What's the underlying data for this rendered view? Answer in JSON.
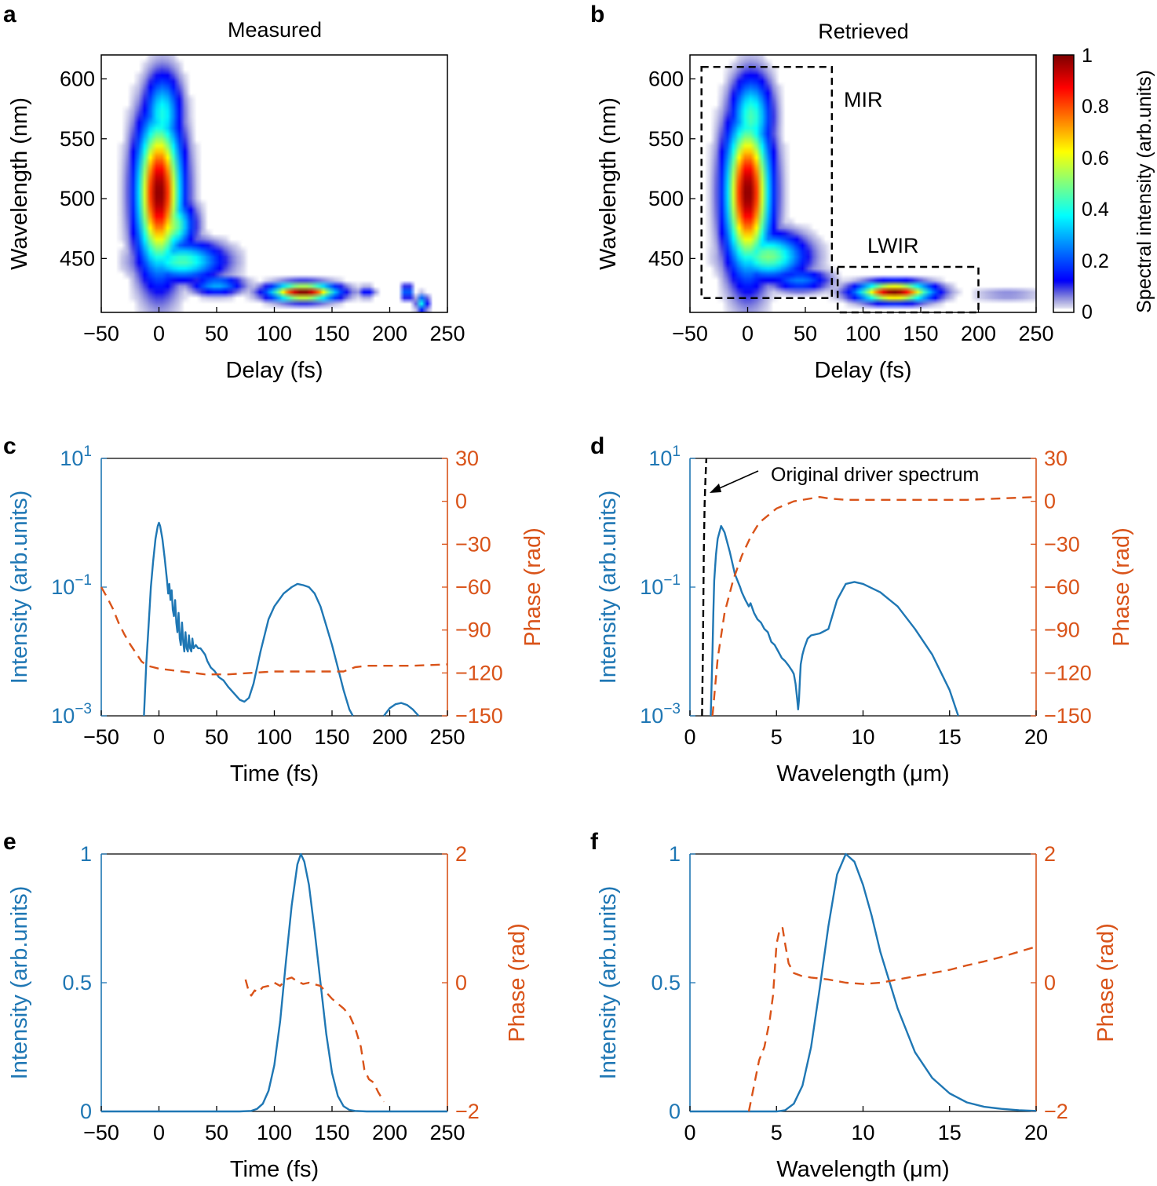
{
  "colors": {
    "blue": "#1f77b4",
    "orange": "#d95319",
    "axis": "#000000"
  },
  "chart_data": [
    {
      "panel": "a",
      "type": "heatmap",
      "title": "Measured",
      "xlabel": "Delay (fs)",
      "ylabel": "Wavelength (nm)",
      "xlim": [
        -50,
        250
      ],
      "ylim": [
        405,
        620
      ],
      "xticks": [
        "−50",
        "0",
        "50",
        "100",
        "150",
        "200",
        "250"
      ],
      "yticks": [
        "450",
        "500",
        "550",
        "600"
      ],
      "blobs": [
        {
          "x": 0,
          "y": 505,
          "sx": 12,
          "sy": 40,
          "amp": 1.0
        },
        {
          "x": 3,
          "y": 570,
          "sx": 10,
          "sy": 22,
          "amp": 0.4
        },
        {
          "x": 20,
          "y": 448,
          "sx": 22,
          "sy": 10,
          "amp": 0.45
        },
        {
          "x": 10,
          "y": 478,
          "sx": 12,
          "sy": 14,
          "amp": 0.55
        },
        {
          "x": 50,
          "y": 428,
          "sx": 14,
          "sy": 5,
          "amp": 0.3
        },
        {
          "x": 125,
          "y": 422,
          "sx": 18,
          "sy": 4.5,
          "amp": 1.0
        },
        {
          "x": 180,
          "y": 422,
          "sx": 5,
          "sy": 3,
          "amp": 0.15
        },
        {
          "x": 215,
          "y": 422,
          "sx": 3,
          "sy": 4,
          "amp": 0.3
        },
        {
          "x": 228,
          "y": 413,
          "sx": 3,
          "sy": 4,
          "amp": 0.4
        }
      ]
    },
    {
      "panel": "b",
      "type": "heatmap",
      "title": "Retrieved",
      "xlabel": "Delay (fs)",
      "ylabel": "Wavelength (nm)",
      "xlim": [
        -50,
        250
      ],
      "ylim": [
        405,
        620
      ],
      "xticks": [
        "−50",
        "0",
        "50",
        "100",
        "150",
        "200",
        "250"
      ],
      "yticks": [
        "450",
        "500",
        "550",
        "600"
      ],
      "annotations": [
        "MIR",
        "LWIR"
      ],
      "boxes": [
        {
          "label": "MIR",
          "x0": -40,
          "x1": 73,
          "y0": 417,
          "y1": 610
        },
        {
          "label": "LWIR",
          "x0": 78,
          "x1": 200,
          "y0": 405,
          "y1": 443
        }
      ],
      "colorbar": {
        "label": "Spectral intensity (arb.units)",
        "ticks": [
          "0",
          "0.2",
          "0.4",
          "0.6",
          "0.8",
          "1"
        ]
      },
      "blobs": [
        {
          "x": 0,
          "y": 505,
          "sx": 12,
          "sy": 40,
          "amp": 1.0
        },
        {
          "x": 3,
          "y": 568,
          "sx": 11,
          "sy": 22,
          "amp": 0.45
        },
        {
          "x": 18,
          "y": 452,
          "sx": 20,
          "sy": 12,
          "amp": 0.5
        },
        {
          "x": 45,
          "y": 432,
          "sx": 16,
          "sy": 6,
          "amp": 0.25
        },
        {
          "x": 127,
          "y": 422,
          "sx": 20,
          "sy": 5,
          "amp": 1.0
        },
        {
          "x": 225,
          "y": 420,
          "sx": 20,
          "sy": 4,
          "amp": 0.06
        }
      ]
    },
    {
      "panel": "c",
      "type": "line",
      "xlabel": "Time (fs)",
      "ylabel_left": "Intensity (arb.units)",
      "ylabel_right": "Phase (rad)",
      "xlim": [
        -50,
        250
      ],
      "ylim_left_log": [
        -3,
        1
      ],
      "ylim_right": [
        -150,
        30
      ],
      "xticks": [
        "−50",
        "0",
        "50",
        "100",
        "150",
        "200",
        "250"
      ],
      "yticks_left": [
        {
          "b": "10",
          "e": "1"
        },
        {
          "b": "10",
          "e": "−1"
        },
        {
          "b": "10",
          "e": "−3"
        }
      ],
      "yticks_right": [
        "30",
        "0",
        "−30",
        "−60",
        "−90",
        "−120",
        "−150"
      ],
      "series": [
        {
          "name": "Intensity",
          "axis": "left-log10",
          "style": "solid",
          "x": [
            -13,
            -11,
            -9,
            -7,
            -5,
            -3,
            -1,
            0,
            1,
            3,
            5,
            7,
            8,
            9,
            10,
            11,
            12,
            13,
            14,
            15,
            16,
            17,
            18,
            19,
            20,
            21,
            22,
            23,
            24,
            25,
            26,
            27,
            28,
            29,
            30,
            32,
            34,
            36,
            38,
            40,
            42,
            45,
            48,
            52,
            56,
            60,
            65,
            70,
            74,
            78,
            82,
            88,
            95,
            100,
            108,
            115,
            120,
            125,
            130,
            135,
            140,
            145,
            150,
            155,
            160,
            165,
            168
          ],
          "y": [
            -3,
            -2.2,
            -1.6,
            -1.0,
            -0.6,
            -0.25,
            -0.05,
            0.0,
            -0.05,
            -0.25,
            -0.55,
            -0.9,
            -1.1,
            -0.95,
            -1.2,
            -1.05,
            -1.35,
            -1.45,
            -1.2,
            -1.55,
            -1.7,
            -1.4,
            -1.8,
            -1.9,
            -1.55,
            -1.85,
            -2.0,
            -1.7,
            -1.95,
            -2.0,
            -1.75,
            -1.95,
            -2.0,
            -1.8,
            -1.95,
            -1.9,
            -1.95,
            -1.95,
            -2.0,
            -2.05,
            -2.15,
            -2.25,
            -2.3,
            -2.4,
            -2.45,
            -2.55,
            -2.65,
            -2.75,
            -2.78,
            -2.72,
            -2.5,
            -2.0,
            -1.5,
            -1.3,
            -1.1,
            -1.0,
            -0.95,
            -0.97,
            -1.0,
            -1.1,
            -1.3,
            -1.6,
            -1.9,
            -2.25,
            -2.6,
            -2.9,
            -3.0
          ]
        },
        {
          "name": "Intensity (satellite)",
          "axis": "left-log10",
          "style": "solid",
          "x": [
            195,
            200,
            205,
            210,
            215,
            220,
            225
          ],
          "y": [
            -3.0,
            -2.88,
            -2.82,
            -2.8,
            -2.83,
            -2.9,
            -3.0
          ]
        },
        {
          "name": "Phase",
          "axis": "right",
          "style": "dashed",
          "x": [
            -50,
            -45,
            -40,
            -35,
            -30,
            -25,
            -20,
            -15,
            -10,
            -5,
            0,
            10,
            20,
            30,
            40,
            50,
            60,
            80,
            100,
            120,
            140,
            160,
            170,
            180,
            200,
            220,
            250
          ],
          "y": [
            -60,
            -67,
            -75,
            -85,
            -93,
            -100,
            -106,
            -112,
            -115,
            -116,
            -117,
            -118,
            -119,
            -120,
            -121,
            -121,
            -121,
            -120,
            -119,
            -119,
            -119,
            -119,
            -116,
            -115,
            -115,
            -115,
            -114
          ]
        }
      ]
    },
    {
      "panel": "d",
      "type": "line",
      "xlabel": "Wavelength (μm)",
      "ylabel_left": "Intensity (arb.units)",
      "ylabel_right": "Phase (rad)",
      "xlim": [
        0,
        20
      ],
      "ylim_left_log": [
        -3,
        1
      ],
      "ylim_right": [
        -150,
        30
      ],
      "xticks": [
        "0",
        "5",
        "10",
        "15",
        "20"
      ],
      "yticks_left": [
        {
          "b": "10",
          "e": "1"
        },
        {
          "b": "10",
          "e": "−1"
        },
        {
          "b": "10",
          "e": "−3"
        }
      ],
      "yticks_right": [
        "30",
        "0",
        "−30",
        "−60",
        "−90",
        "−120",
        "−150"
      ],
      "annotations": [
        "Original driver spectrum"
      ],
      "series": [
        {
          "name": "Intensity",
          "axis": "left-log10",
          "style": "solid",
          "x": [
            1.2,
            1.25,
            1.3,
            1.35,
            1.4,
            1.5,
            1.6,
            1.8,
            2.0,
            2.3,
            2.6,
            2.9,
            3.0,
            3.2,
            3.4,
            3.5,
            3.7,
            3.9,
            4.1,
            4.3,
            4.5,
            4.7,
            4.9,
            5.1,
            5.3,
            5.5,
            5.7,
            5.9,
            6.0,
            6.1,
            6.2,
            6.25,
            6.3,
            6.35,
            6.4,
            6.5,
            6.6,
            6.8,
            7.0,
            7.5,
            8.0,
            8.5,
            9.0,
            9.5,
            10.0,
            11.0,
            12.0,
            13.0,
            14.0,
            15.0,
            15.5
          ],
          "y": [
            -3.0,
            -2.5,
            -2.0,
            -1.4,
            -0.9,
            -0.5,
            -0.25,
            -0.05,
            -0.15,
            -0.45,
            -0.8,
            -1.0,
            -1.08,
            -1.2,
            -1.3,
            -1.25,
            -1.4,
            -1.5,
            -1.55,
            -1.65,
            -1.7,
            -1.85,
            -1.9,
            -2.0,
            -2.1,
            -2.15,
            -2.22,
            -2.3,
            -2.35,
            -2.5,
            -2.75,
            -2.9,
            -2.75,
            -2.45,
            -2.2,
            -2.05,
            -1.95,
            -1.8,
            -1.75,
            -1.72,
            -1.65,
            -1.2,
            -0.95,
            -0.92,
            -0.95,
            -1.08,
            -1.3,
            -1.65,
            -2.05,
            -2.6,
            -3.0
          ]
        },
        {
          "name": "Original driver spectrum",
          "axis": "left-log10",
          "style": "dashed-black",
          "x": [
            0.7,
            0.75,
            0.8,
            0.85,
            0.9,
            0.95
          ],
          "y": [
            -3.0,
            -2.0,
            -0.5,
            0.3,
            0.7,
            1.0
          ]
        },
        {
          "name": "Phase",
          "axis": "right",
          "style": "dashed",
          "x": [
            1.3,
            1.6,
            2.0,
            2.5,
            3.0,
            3.5,
            4.0,
            5.0,
            6.0,
            7.0,
            7.5,
            8.0,
            9.0,
            10.0,
            12.0,
            14.0,
            16.0,
            18.0,
            20.0
          ],
          "y": [
            -150,
            -110,
            -78,
            -55,
            -38,
            -25,
            -15,
            -5,
            0,
            2,
            3,
            2,
            1,
            1,
            1,
            1,
            1,
            2,
            3
          ]
        }
      ]
    },
    {
      "panel": "e",
      "type": "line",
      "xlabel": "Time (fs)",
      "ylabel_left": "Intensity (arb.units)",
      "ylabel_right": "Phase (rad)",
      "xlim": [
        -50,
        250
      ],
      "ylim_left": [
        0,
        1
      ],
      "ylim_right": [
        -2,
        2
      ],
      "xticks": [
        "−50",
        "0",
        "50",
        "100",
        "150",
        "200",
        "250"
      ],
      "yticks_left": [
        "1",
        "0.5",
        "0"
      ],
      "yticks_right": [
        "2",
        "0",
        "−2"
      ],
      "series": [
        {
          "name": "Intensity",
          "axis": "left",
          "style": "solid",
          "x": [
            -50,
            50,
            70,
            80,
            85,
            90,
            95,
            100,
            105,
            110,
            115,
            120,
            123,
            126,
            130,
            135,
            140,
            145,
            150,
            155,
            160,
            165,
            170,
            180,
            250
          ],
          "y": [
            0,
            0,
            0,
            0.002,
            0.01,
            0.03,
            0.08,
            0.18,
            0.35,
            0.58,
            0.8,
            0.96,
            1.0,
            0.97,
            0.88,
            0.7,
            0.5,
            0.3,
            0.15,
            0.06,
            0.02,
            0.006,
            0.002,
            0,
            0
          ]
        },
        {
          "name": "Phase",
          "axis": "right",
          "style": "dashed",
          "x": [
            75,
            78,
            80,
            83,
            86,
            90,
            95,
            100,
            105,
            110,
            115,
            120,
            125,
            130,
            140,
            150,
            160,
            165,
            170,
            175,
            178,
            182,
            186,
            190,
            195
          ],
          "y": [
            0.05,
            -0.15,
            -0.2,
            -0.12,
            -0.15,
            -0.07,
            -0.05,
            0.0,
            -0.05,
            0.05,
            0.08,
            0.02,
            -0.02,
            0.0,
            -0.05,
            -0.25,
            -0.4,
            -0.5,
            -0.7,
            -1.0,
            -1.35,
            -1.5,
            -1.55,
            -1.7,
            -1.85
          ]
        }
      ]
    },
    {
      "panel": "f",
      "type": "line",
      "xlabel": "Wavelength (μm)",
      "ylabel_left": "Intensity (arb.units)",
      "ylabel_right": "Phase (rad)",
      "xlim": [
        0,
        20
      ],
      "ylim_left": [
        0,
        1
      ],
      "ylim_right": [
        -2,
        2
      ],
      "xticks": [
        "0",
        "5",
        "10",
        "15",
        "20"
      ],
      "yticks_left": [
        "1",
        "0.5",
        "0"
      ],
      "yticks_right": [
        "2",
        "0",
        "−2"
      ],
      "series": [
        {
          "name": "Intensity",
          "axis": "left",
          "style": "solid",
          "x": [
            0,
            5,
            5.5,
            6,
            6.5,
            7,
            7.5,
            8,
            8.5,
            9,
            9.5,
            10,
            10.5,
            11,
            12,
            13,
            14,
            15,
            16,
            17,
            18,
            19,
            20
          ],
          "y": [
            0,
            0,
            0.005,
            0.03,
            0.1,
            0.25,
            0.48,
            0.72,
            0.92,
            1.0,
            0.97,
            0.88,
            0.76,
            0.62,
            0.4,
            0.23,
            0.13,
            0.07,
            0.035,
            0.018,
            0.01,
            0.005,
            0.002
          ]
        },
        {
          "name": "Phase",
          "axis": "right",
          "style": "dashed",
          "x": [
            3.4,
            3.7,
            4.0,
            4.3,
            4.6,
            4.8,
            5.0,
            5.2,
            5.35,
            5.5,
            5.7,
            6.0,
            6.5,
            7.0,
            8.0,
            9.0,
            10.0,
            11.0,
            12.0,
            13.0,
            14.0,
            15.0,
            16.0,
            17.0,
            18.0,
            19.0,
            20.0
          ],
          "y": [
            -2.0,
            -1.6,
            -1.2,
            -1.0,
            -0.6,
            -0.2,
            0.6,
            0.85,
            0.85,
            0.6,
            0.3,
            0.15,
            0.1,
            0.08,
            0.05,
            0.0,
            -0.02,
            0.0,
            0.05,
            0.1,
            0.15,
            0.2,
            0.27,
            0.33,
            0.4,
            0.48,
            0.56
          ]
        }
      ]
    }
  ]
}
